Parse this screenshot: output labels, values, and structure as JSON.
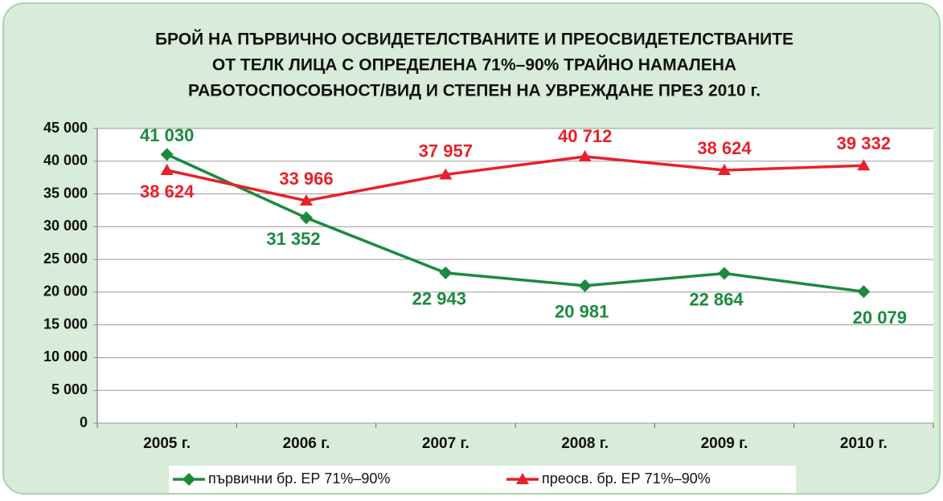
{
  "chart_data": {
    "type": "line",
    "title": [
      "БРОЙ НА ПЪРВИЧНО ОСВИДЕТЕЛСТВАНИТЕ И ПРЕОСВИДЕТЕЛСТВАНИТЕ",
      "ОТ ТЕЛК ЛИЦА С ОПРЕДЕЛЕНА 71%–90% ТРАЙНО НАМАЛЕНА",
      "РАБОТОСПОСОБНОСТ/ВИД И СТЕПЕН НА УВРЕЖДАНЕ ПРЕЗ 2010 г."
    ],
    "categories": [
      "2005 г.",
      "2006 г.",
      "2007 г.",
      "2008 г.",
      "2009 г.",
      "2010 г."
    ],
    "series": [
      {
        "name": "първични бр. ЕР 71%–90%",
        "color": "#1b8a3f",
        "marker": "diamond",
        "values": [
          41030,
          31352,
          22943,
          20981,
          22864,
          20079
        ],
        "value_labels": [
          "41 030",
          "31 352",
          "22 943",
          "20 981",
          "22 864",
          "20 079"
        ]
      },
      {
        "name": "преосв. бр. ЕР 71%–90%",
        "color": "#e8202a",
        "marker": "triangle",
        "values": [
          38624,
          33966,
          37957,
          40712,
          38624,
          39332
        ],
        "value_labels": [
          "38 624",
          "33 966",
          "37 957",
          "40 712",
          "38 624",
          "39 332"
        ]
      }
    ],
    "ylim": [
      0,
      45000
    ],
    "yticks": [
      0,
      {
        "value": 5000,
        "label": "5 000"
      },
      {
        "value": 10000,
        "label": "10 000"
      },
      {
        "value": 15000,
        "label": "15 000"
      },
      {
        "value": 20000,
        "label": "20 000"
      },
      {
        "value": 25000,
        "label": "25 000"
      },
      {
        "value": 30000,
        "label": "30 000"
      },
      {
        "value": 35000,
        "label": "35 000"
      },
      {
        "value": 40000,
        "label": "40 000"
      },
      {
        "value": 45000,
        "label": "45 000"
      }
    ],
    "grid": true,
    "legend": "bottom"
  }
}
